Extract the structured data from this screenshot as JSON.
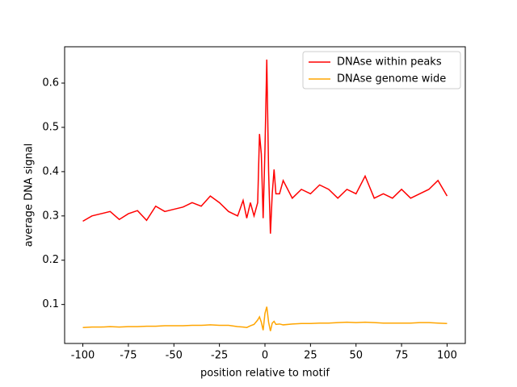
{
  "chart_data": {
    "type": "line",
    "xlabel": "position relative to motif",
    "ylabel": "average DNA signal",
    "x": [
      -100,
      -95,
      -90,
      -85,
      -80,
      -75,
      -70,
      -65,
      -60,
      -55,
      -50,
      -45,
      -40,
      -35,
      -30,
      -25,
      -20,
      -15,
      -12,
      -10,
      -8,
      -6,
      -4,
      -3,
      -2,
      -1,
      0,
      1,
      2,
      3,
      4,
      5,
      6,
      8,
      10,
      15,
      20,
      25,
      30,
      35,
      40,
      45,
      50,
      55,
      60,
      65,
      70,
      75,
      80,
      85,
      90,
      95,
      100
    ],
    "series": [
      {
        "name": "DNAse within peaks",
        "color": "#ff0000",
        "values": [
          0.288,
          0.3,
          0.305,
          0.31,
          0.292,
          0.305,
          0.312,
          0.29,
          0.322,
          0.31,
          0.315,
          0.32,
          0.33,
          0.322,
          0.345,
          0.33,
          0.31,
          0.3,
          0.335,
          0.295,
          0.33,
          0.3,
          0.33,
          0.485,
          0.44,
          0.295,
          0.45,
          0.653,
          0.4,
          0.26,
          0.35,
          0.405,
          0.35,
          0.35,
          0.38,
          0.34,
          0.36,
          0.35,
          0.37,
          0.36,
          0.34,
          0.36,
          0.35,
          0.39,
          0.34,
          0.35,
          0.34,
          0.36,
          0.34,
          0.35,
          0.36,
          0.38,
          0.345
        ]
      },
      {
        "name": "DNAse genome wide",
        "color": "#ffa500",
        "values": [
          0.048,
          0.049,
          0.049,
          0.05,
          0.049,
          0.05,
          0.05,
          0.051,
          0.051,
          0.052,
          0.052,
          0.052,
          0.053,
          0.053,
          0.054,
          0.053,
          0.053,
          0.05,
          0.049,
          0.048,
          0.052,
          0.055,
          0.065,
          0.072,
          0.06,
          0.042,
          0.08,
          0.095,
          0.06,
          0.04,
          0.058,
          0.062,
          0.055,
          0.056,
          0.054,
          0.056,
          0.057,
          0.057,
          0.058,
          0.058,
          0.059,
          0.06,
          0.059,
          0.06,
          0.059,
          0.058,
          0.058,
          0.058,
          0.058,
          0.059,
          0.059,
          0.058,
          0.057
        ]
      }
    ],
    "xlim": [
      -110,
      110
    ],
    "xticks": [
      -100,
      -75,
      -50,
      -25,
      0,
      25,
      50,
      75,
      100
    ],
    "ylim": [
      0.012,
      0.682
    ],
    "yticks": [
      0.1,
      0.2,
      0.3,
      0.4,
      0.5,
      0.6
    ],
    "legend": "upper right"
  }
}
